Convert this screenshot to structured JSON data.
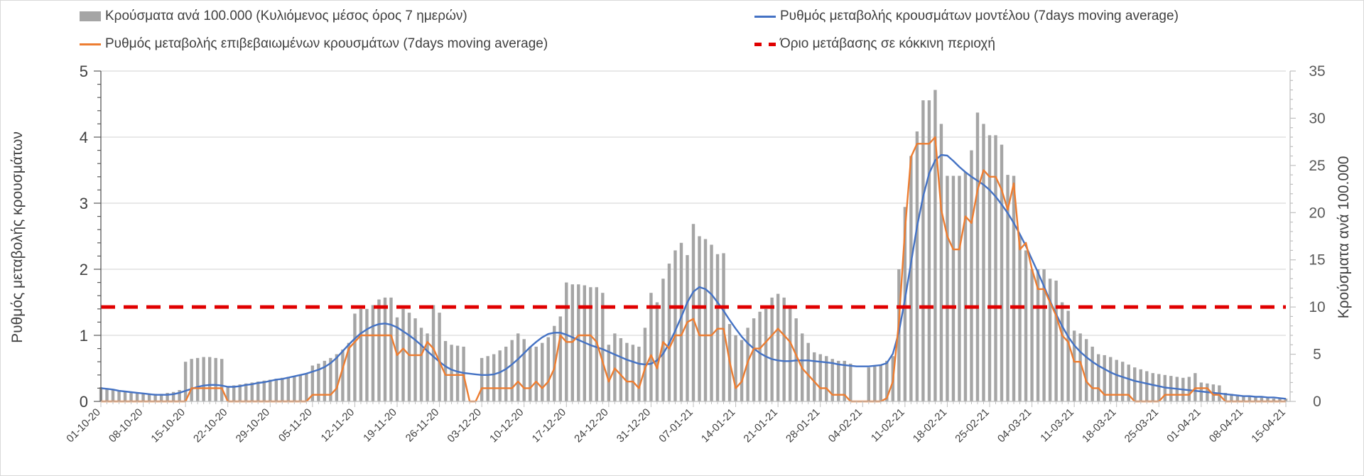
{
  "chart_data": {
    "type": "bar+line",
    "left_axis": {
      "label": "Ρυθμός μεταβολής κρουσμάτων",
      "ylim": [
        0,
        5
      ],
      "ticks": [
        "0",
        "1",
        "2",
        "3",
        "4",
        "5"
      ]
    },
    "right_axis": {
      "label": "Κρούσματα ανά 100.000",
      "ylim": [
        0,
        35
      ],
      "ticks": [
        "0",
        "5",
        "10",
        "15",
        "20",
        "25",
        "30",
        "35"
      ]
    },
    "x_start": "01-10-20",
    "x_end": "15-04-21",
    "x_tick_labels": [
      "01-10-20",
      "08-10-20",
      "15-10-20",
      "22-10-20",
      "29-10-20",
      "05-11-20",
      "12-11-20",
      "19-11-20",
      "26-11-20",
      "03-12-20",
      "10-12-20",
      "17-12-20",
      "24-12-20",
      "31-12-20",
      "07-01-21",
      "14-01-21",
      "21-01-21",
      "28-01-21",
      "04-02-21",
      "11-02-21",
      "18-02-21",
      "25-02-21",
      "04-03-21",
      "11-03-21",
      "18-03-21",
      "25-03-21",
      "01-04-21",
      "08-04-21",
      "15-04-21"
    ],
    "grid": true,
    "legend_placement": "top",
    "series": [
      {
        "name": "Κρούσματα ανά 100.000 (Κυλιόμενος μέσος όρος 7 ημερών)",
        "type": "bar",
        "axis": "right",
        "color": "#a5a5a5",
        "values": [
          1.5,
          1.4,
          1.3,
          1.2,
          1.1,
          1.0,
          0.9,
          0.9,
          0.8,
          0.8,
          0.8,
          0.9,
          1.0,
          1.2,
          4.2,
          4.5,
          4.6,
          4.7,
          4.7,
          4.6,
          4.5,
          1.6,
          1.7,
          1.8,
          1.9,
          2.0,
          2.1,
          2.2,
          2.3,
          2.4,
          2.5,
          2.6,
          2.7,
          2.8,
          3.0,
          3.8,
          4.0,
          4.3,
          4.6,
          5.0,
          5.5,
          6.2,
          9.3,
          9.8,
          9.8,
          10.2,
          10.8,
          11.0,
          11.0,
          8.9,
          9.8,
          9.4,
          8.8,
          7.8,
          7.2,
          10.2,
          9.4,
          6.4,
          6.0,
          5.9,
          5.8,
          0,
          0,
          4.6,
          4.8,
          5.0,
          5.4,
          5.8,
          6.5,
          7.2,
          6.6,
          5.8,
          5.8,
          6.2,
          6.8,
          8.0,
          9.0,
          12.6,
          12.4,
          12.4,
          12.3,
          12.1,
          12.1,
          11.5,
          6.0,
          7.2,
          6.7,
          6.2,
          6.0,
          5.8,
          7.8,
          11.5,
          10.5,
          13.0,
          14.6,
          16.0,
          16.8,
          15.5,
          18.8,
          17.5,
          17.2,
          16.6,
          15.6,
          15.7,
          8.2,
          7.0,
          6.5,
          7.8,
          8.8,
          9.5,
          9.8,
          11.0,
          11.4,
          11.0,
          10.2,
          8.8,
          7.2,
          6.2,
          5.2,
          5.0,
          4.8,
          4.5,
          4.3,
          4.3,
          4.0,
          0,
          0,
          3.6,
          3.7,
          3.8,
          4.3,
          4.8,
          14.0,
          20.6,
          26.0,
          28.6,
          31.9,
          31.9,
          33.0,
          29.4,
          23.9,
          23.9,
          23.9,
          24.3,
          26.6,
          30.6,
          29.4,
          28.2,
          28.2,
          27.2,
          24.0,
          23.9,
          17.6,
          16.0,
          14.0,
          14.0,
          14.0,
          13.0,
          12.8,
          10.5,
          9.6,
          7.5,
          7.2,
          6.6,
          5.8,
          5.0,
          4.9,
          4.7,
          4.4,
          4.2,
          3.9,
          3.6,
          3.4,
          3.2,
          3.0,
          2.9,
          2.8,
          2.7,
          2.6,
          2.5,
          2.6,
          3.0,
          2.0,
          1.9,
          1.8,
          1.7,
          0.9,
          0.8,
          0.7,
          0.6,
          0.5,
          0.5,
          0.4,
          0.4,
          0.3,
          0.3,
          0.3
        ]
      },
      {
        "name": "Ρυθμός μεταβολής κρουσμάτων μοντέλου (7days moving average)",
        "type": "line",
        "axis": "left",
        "color": "#4472c4",
        "values": [
          0.2,
          0.19,
          0.18,
          0.16,
          0.15,
          0.14,
          0.13,
          0.12,
          0.11,
          0.1,
          0.1,
          0.1,
          0.11,
          0.13,
          0.16,
          0.19,
          0.22,
          0.24,
          0.25,
          0.25,
          0.24,
          0.22,
          0.22,
          0.23,
          0.25,
          0.26,
          0.28,
          0.29,
          0.31,
          0.33,
          0.34,
          0.36,
          0.38,
          0.4,
          0.42,
          0.45,
          0.48,
          0.52,
          0.58,
          0.66,
          0.76,
          0.86,
          0.95,
          1.03,
          1.09,
          1.14,
          1.17,
          1.18,
          1.16,
          1.12,
          1.06,
          1.0,
          0.93,
          0.85,
          0.76,
          0.68,
          0.6,
          0.53,
          0.48,
          0.45,
          0.43,
          0.42,
          0.41,
          0.4,
          0.4,
          0.41,
          0.44,
          0.49,
          0.56,
          0.64,
          0.73,
          0.82,
          0.9,
          0.97,
          1.02,
          1.04,
          1.04,
          1.01,
          0.97,
          0.93,
          0.89,
          0.85,
          0.82,
          0.79,
          0.75,
          0.71,
          0.67,
          0.63,
          0.6,
          0.57,
          0.56,
          0.57,
          0.62,
          0.72,
          0.88,
          1.07,
          1.28,
          1.5,
          1.66,
          1.73,
          1.7,
          1.62,
          1.5,
          1.37,
          1.23,
          1.1,
          0.98,
          0.88,
          0.8,
          0.73,
          0.68,
          0.64,
          0.62,
          0.61,
          0.61,
          0.62,
          0.62,
          0.62,
          0.61,
          0.6,
          0.59,
          0.58,
          0.56,
          0.55,
          0.54,
          0.53,
          0.53,
          0.53,
          0.54,
          0.55,
          0.58,
          0.72,
          1.05,
          1.55,
          2.1,
          2.65,
          3.1,
          3.45,
          3.65,
          3.73,
          3.72,
          3.64,
          3.55,
          3.47,
          3.4,
          3.34,
          3.28,
          3.2,
          3.1,
          2.98,
          2.85,
          2.7,
          2.53,
          2.35,
          2.15,
          1.95,
          1.74,
          1.52,
          1.32,
          1.14,
          0.98,
          0.85,
          0.75,
          0.67,
          0.6,
          0.54,
          0.49,
          0.44,
          0.4,
          0.37,
          0.34,
          0.31,
          0.29,
          0.27,
          0.25,
          0.23,
          0.21,
          0.2,
          0.19,
          0.18,
          0.17,
          0.16,
          0.15,
          0.14,
          0.13,
          0.12,
          0.11,
          0.1,
          0.09,
          0.08,
          0.08,
          0.07,
          0.07,
          0.06,
          0.06,
          0.05,
          0.04
        ]
      },
      {
        "name": "Ρυθμός μεταβολής επιβεβαιωμένων κρουσμάτων (7days moving average)",
        "type": "line",
        "axis": "left",
        "color": "#ed7d31",
        "values": [
          0,
          0,
          0,
          0,
          0,
          0,
          0,
          0,
          0,
          0,
          0,
          0,
          0,
          0,
          0,
          0.2,
          0.2,
          0.2,
          0.2,
          0.2,
          0.2,
          0,
          0,
          0,
          0,
          0,
          0,
          0,
          0,
          0,
          0,
          0,
          0,
          0,
          0,
          0.1,
          0.1,
          0.1,
          0.1,
          0.2,
          0.5,
          0.8,
          0.9,
          1.0,
          1.0,
          1.0,
          1.0,
          1.0,
          1.0,
          0.7,
          0.8,
          0.7,
          0.7,
          0.7,
          0.9,
          0.8,
          0.6,
          0.4,
          0.4,
          0.4,
          0.4,
          0,
          0,
          0.2,
          0.2,
          0.2,
          0.2,
          0.2,
          0.2,
          0.3,
          0.2,
          0.2,
          0.3,
          0.2,
          0.3,
          0.5,
          1.0,
          0.9,
          0.9,
          1.0,
          1.0,
          1.0,
          0.9,
          0.6,
          0.3,
          0.5,
          0.4,
          0.3,
          0.3,
          0.2,
          0.5,
          0.7,
          0.5,
          0.9,
          0.8,
          1.0,
          1.0,
          1.2,
          1.25,
          1.0,
          1.0,
          1.0,
          1.1,
          1.1,
          0.6,
          0.2,
          0.3,
          0.6,
          0.8,
          0.8,
          0.9,
          1.0,
          1.1,
          1.0,
          0.9,
          0.7,
          0.5,
          0.4,
          0.3,
          0.2,
          0.2,
          0.1,
          0.1,
          0.1,
          0,
          0,
          0,
          0,
          0,
          0,
          0.05,
          0.3,
          1.2,
          2.6,
          3.7,
          3.9,
          3.9,
          3.9,
          4.0,
          2.9,
          2.5,
          2.3,
          2.3,
          2.8,
          2.7,
          3.2,
          3.5,
          3.4,
          3.4,
          3.2,
          2.9,
          3.3,
          2.3,
          2.4,
          2.0,
          1.7,
          1.7,
          1.5,
          1.3,
          1.0,
          0.9,
          0.6,
          0.6,
          0.3,
          0.2,
          0.2,
          0.1,
          0.1,
          0.1,
          0.1,
          0.1,
          0,
          0,
          0,
          0,
          0,
          0.1,
          0.1,
          0.1,
          0.1,
          0.1,
          0.2,
          0.2,
          0.2,
          0.1,
          0.1,
          0,
          0,
          0,
          0,
          0,
          0,
          0,
          0,
          0,
          0,
          0
        ]
      },
      {
        "name": "Όριο μετάβασης σε κόκκινη περιοχή",
        "type": "line",
        "style": "dashed",
        "axis": "right",
        "color": "#e00000",
        "value": 10
      }
    ]
  }
}
